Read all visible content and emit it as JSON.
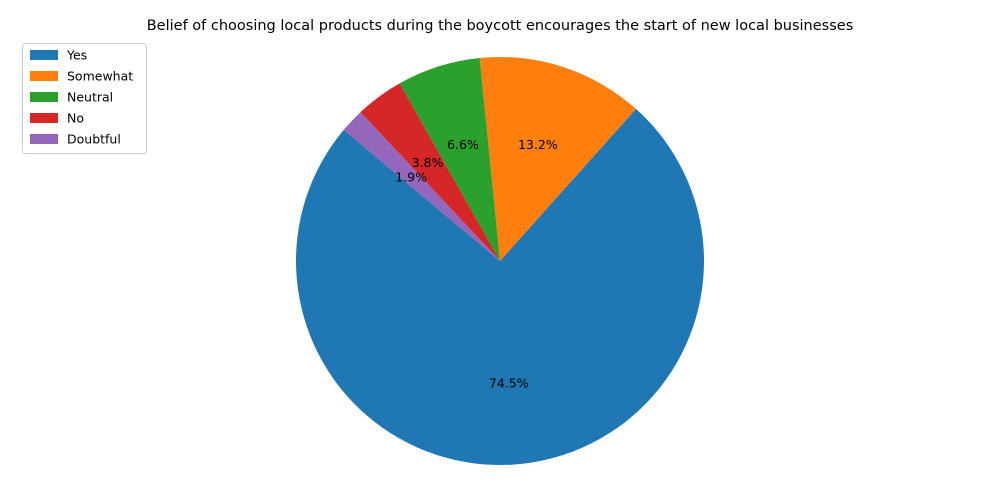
{
  "chart_data": {
    "type": "pie",
    "title": "Belief of choosing local products during the boycott encourages the start of new local businesses",
    "categories": [
      "Yes",
      "Somewhat",
      "Neutral",
      "No",
      "Doubtful"
    ],
    "values": [
      74.5,
      13.2,
      6.6,
      3.8,
      1.9
    ],
    "labels": [
      "74.5%",
      "13.2%",
      "6.6%",
      "3.8%",
      "1.9%"
    ],
    "colors": [
      "#1f77b4",
      "#ff7f0e",
      "#2ca02c",
      "#d62728",
      "#9467bd"
    ],
    "legend": "top-left",
    "grid": false
  }
}
